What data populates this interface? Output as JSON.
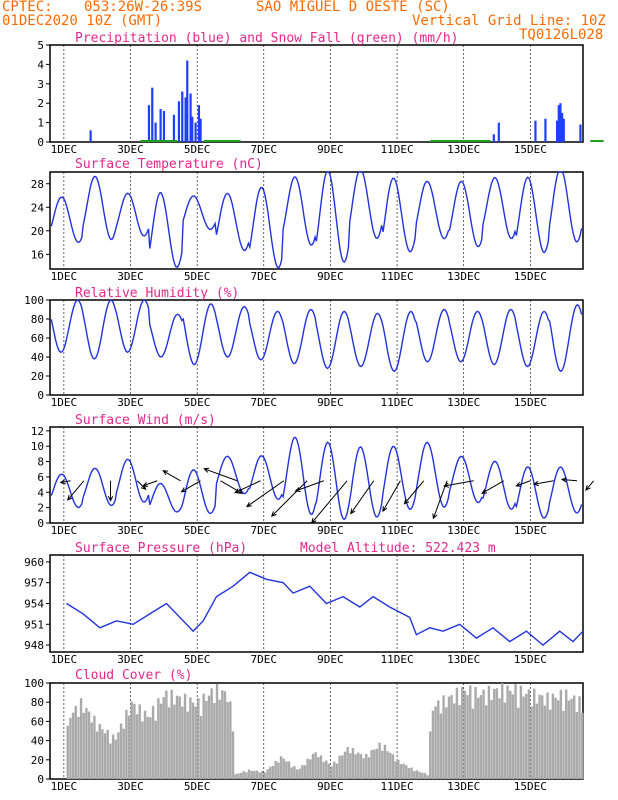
{
  "header": {
    "source": "CPTEC:",
    "coords": "053:26W-26:39S",
    "location": "SAO MIGUEL D OESTE (SC)",
    "run": "01DEC2020 10Z (GMT)",
    "grid_note": "Vertical Grid Line: 10Z",
    "code": "TQ0126L028"
  },
  "x_ticks": [
    "1DEC",
    "3DEC",
    "5DEC",
    "7DEC",
    "9DEC",
    "11DEC",
    "13DEC",
    "15DEC"
  ],
  "colors": {
    "header": "#ff6a00",
    "title": "#e8258a",
    "precip": "#1f3fff",
    "snow": "#1aa01a",
    "line": "#2233dd",
    "cloud": "#aaaaaa",
    "arrow": "#000000"
  },
  "chart_data": [
    {
      "type": "bar",
      "title": "Precipitation (blue) and Snow Fall (green) (mm/h)",
      "ylim": [
        0,
        5
      ],
      "yticks": [
        0,
        1,
        2,
        3,
        4,
        5
      ],
      "series": [
        {
          "name": "Precipitation",
          "color": "#1f3fff",
          "points": [
            [
              0.8,
              0.6
            ],
            [
              2.55,
              1.9
            ],
            [
              2.65,
              2.8
            ],
            [
              2.75,
              1.0
            ],
            [
              2.9,
              1.7
            ],
            [
              3.0,
              1.6
            ],
            [
              3.3,
              1.4
            ],
            [
              3.45,
              2.1
            ],
            [
              3.55,
              2.6
            ],
            [
              3.65,
              2.3
            ],
            [
              3.7,
              4.2
            ],
            [
              3.8,
              2.5
            ],
            [
              3.85,
              1.3
            ],
            [
              3.95,
              1.0
            ],
            [
              4.05,
              1.9
            ],
            [
              4.1,
              1.2
            ],
            [
              11.3,
              0.1
            ],
            [
              12.9,
              0.4
            ],
            [
              13.05,
              1.0
            ],
            [
              14.15,
              1.1
            ],
            [
              14.45,
              1.2
            ],
            [
              14.8,
              1.1
            ],
            [
              14.85,
              1.9
            ],
            [
              14.9,
              2.0
            ],
            [
              14.95,
              1.5
            ],
            [
              15.0,
              1.2
            ],
            [
              15.5,
              0.9
            ]
          ]
        },
        {
          "name": "Snow Fall",
          "color": "#1aa01a",
          "segments": [
            [
              2.3,
              3.4
            ],
            [
              4.2,
              5.3
            ],
            [
              11.0,
              12.8
            ],
            [
              15.8,
              16.2
            ]
          ]
        }
      ]
    },
    {
      "type": "line",
      "title": "Surface Temperature (nC)",
      "ylim": [
        13.5,
        30
      ],
      "yticks": [
        16,
        20,
        24,
        28
      ],
      "series": [
        {
          "name": "Surface Temperature",
          "color": "#2233dd",
          "min": [
            18,
            19,
            19.5,
            14,
            20,
            16,
            13.5,
            18,
            15.5,
            19,
            16,
            18,
            17,
            19,
            17,
            18.5
          ],
          "max": [
            26,
            29,
            26,
            26,
            26,
            27,
            28,
            29,
            29.5,
            30,
            29,
            29,
            29,
            29,
            28.5,
            30
          ]
        }
      ]
    },
    {
      "type": "line",
      "title": "Relative Humidity (%)",
      "ylim": [
        0,
        100
      ],
      "yticks": [
        0,
        20,
        40,
        60,
        80,
        100
      ],
      "series": [
        {
          "name": "Relative Humidity",
          "color": "#2233dd",
          "min": [
            45,
            38,
            45,
            40,
            32,
            40,
            37,
            33,
            28,
            30,
            25,
            35,
            35,
            32,
            30,
            25
          ],
          "max": [
            100,
            100,
            100,
            85,
            96,
            93,
            88,
            90,
            88,
            86,
            88,
            90,
            88,
            90,
            88,
            95
          ]
        }
      ]
    },
    {
      "type": "line",
      "title": "Surface Wind (m/s)",
      "ylim": [
        0,
        12.5
      ],
      "yticks": [
        0,
        2,
        4,
        6,
        8,
        10,
        12
      ],
      "series": [
        {
          "name": "Surface Wind",
          "color": "#2233dd",
          "min": [
            2,
            2.5,
            3,
            1.5,
            1,
            3.5,
            3,
            1.5,
            1,
            1,
            1.5,
            1.5,
            2.5,
            2,
            1,
            1.5
          ],
          "max": [
            6.5,
            7,
            8,
            5,
            7,
            9,
            9,
            11,
            10,
            9.5,
            10,
            11,
            9,
            8,
            7,
            7
          ]
        }
      ],
      "arrows": [
        [
          0.2,
          10,
          190
        ],
        [
          0.6,
          25,
          230
        ],
        [
          1.4,
          20,
          270
        ],
        [
          2.2,
          12,
          315
        ],
        [
          2.8,
          15,
          200
        ],
        [
          3.5,
          20,
          150
        ],
        [
          4.1,
          22,
          210
        ],
        [
          4.7,
          25,
          330
        ],
        [
          5.2,
          35,
          160
        ],
        [
          5.9,
          28,
          205
        ],
        [
          6.6,
          45,
          215
        ],
        [
          7.3,
          50,
          225
        ],
        [
          7.8,
          30,
          200
        ],
        [
          8.5,
          55,
          230
        ],
        [
          9.3,
          40,
          235
        ],
        [
          10.1,
          35,
          240
        ],
        [
          10.8,
          30,
          230
        ],
        [
          11.5,
          40,
          250
        ],
        [
          12.3,
          30,
          190
        ],
        [
          13.2,
          25,
          210
        ],
        [
          14.0,
          15,
          200
        ],
        [
          14.7,
          20,
          190
        ],
        [
          15.4,
          15,
          175
        ],
        [
          15.9,
          12,
          230
        ]
      ]
    },
    {
      "type": "line",
      "title": "Surface Pressure (hPa)",
      "annotation": "Model Altitude: 522.423 m",
      "ylim": [
        947,
        961
      ],
      "yticks": [
        948,
        951,
        954,
        957,
        960
      ],
      "series": [
        {
          "name": "Surface Pressure",
          "color": "#2233dd",
          "points": [
            [
              0,
              953.5
            ],
            [
              0.5,
              954
            ],
            [
              1,
              952.5
            ],
            [
              1.5,
              950.5
            ],
            [
              2,
              951.5
            ],
            [
              2.5,
              951
            ],
            [
              3,
              952.5
            ],
            [
              3.5,
              954
            ],
            [
              4,
              951.5
            ],
            [
              4.3,
              950
            ],
            [
              4.6,
              951.5
            ],
            [
              5,
              955
            ],
            [
              5.5,
              956.5
            ],
            [
              6,
              958.5
            ],
            [
              6.5,
              957.5
            ],
            [
              7,
              957
            ],
            [
              7.3,
              955.5
            ],
            [
              7.8,
              956.5
            ],
            [
              8.3,
              954
            ],
            [
              8.8,
              955
            ],
            [
              9.3,
              953.5
            ],
            [
              9.7,
              955
            ],
            [
              10.2,
              953.5
            ],
            [
              10.8,
              952
            ],
            [
              11,
              949.5
            ],
            [
              11.4,
              950.5
            ],
            [
              11.8,
              950
            ],
            [
              12.3,
              951
            ],
            [
              12.8,
              949
            ],
            [
              13.3,
              950.5
            ],
            [
              13.8,
              948.5
            ],
            [
              14.3,
              950
            ],
            [
              14.8,
              948
            ],
            [
              15.3,
              950
            ],
            [
              15.7,
              948.5
            ],
            [
              16,
              950
            ]
          ]
        }
      ]
    },
    {
      "type": "area",
      "title": "Cloud Cover (%)",
      "ylim": [
        0,
        100
      ],
      "yticks": [
        0,
        20,
        40,
        60,
        80,
        100
      ],
      "series": [
        {
          "name": "Cloud Cover",
          "color": "#aaaaaa",
          "points": [
            [
              0,
              0
            ],
            [
              0.1,
              70
            ],
            [
              0.5,
              85
            ],
            [
              1,
              60
            ],
            [
              1.5,
              45
            ],
            [
              2,
              85
            ],
            [
              2.5,
              70
            ],
            [
              3,
              95
            ],
            [
              3.5,
              90
            ],
            [
              4,
              85
            ],
            [
              4.5,
              100
            ],
            [
              4.9,
              95
            ],
            [
              5.05,
              60
            ],
            [
              5.1,
              5
            ],
            [
              5.5,
              10
            ],
            [
              6,
              8
            ],
            [
              6.5,
              25
            ],
            [
              7,
              10
            ],
            [
              7.5,
              30
            ],
            [
              8,
              15
            ],
            [
              8.5,
              35
            ],
            [
              9,
              25
            ],
            [
              9.5,
              40
            ],
            [
              10,
              20
            ],
            [
              10.5,
              10
            ],
            [
              10.9,
              5
            ],
            [
              11,
              80
            ],
            [
              11.5,
              90
            ],
            [
              12,
              100
            ],
            [
              12.5,
              95
            ],
            [
              13,
              100
            ],
            [
              13.5,
              100
            ],
            [
              14,
              95
            ],
            [
              14.5,
              90
            ],
            [
              15,
              95
            ],
            [
              15.5,
              85
            ],
            [
              15.8,
              40
            ],
            [
              16,
              15
            ]
          ]
        }
      ]
    }
  ]
}
